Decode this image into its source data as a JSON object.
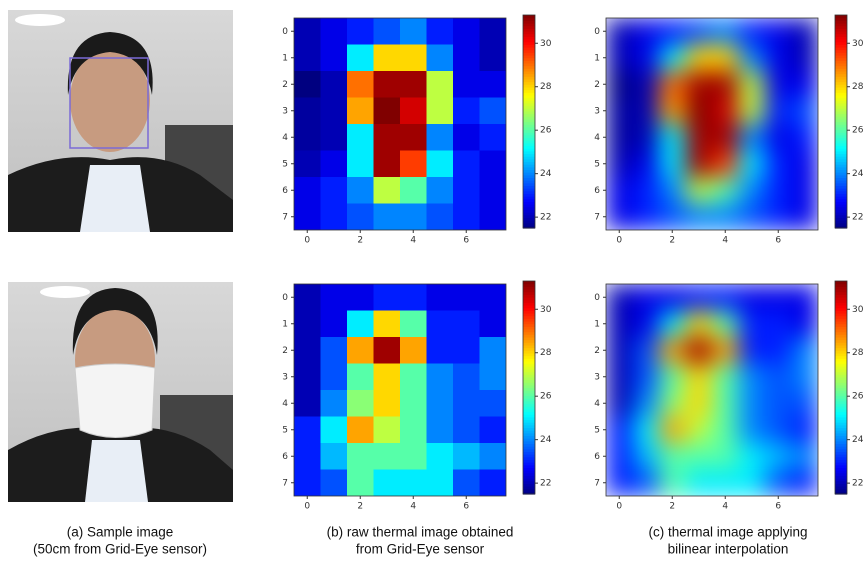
{
  "chart_data": [
    {
      "type": "heatmap",
      "colormap": "jet",
      "interpolation": "none",
      "xlim": [
        -0.5,
        7.5
      ],
      "ylim": [
        7.5,
        -0.5
      ],
      "xticks": [
        0,
        2,
        4,
        6
      ],
      "yticks": [
        0,
        1,
        2,
        3,
        4,
        5,
        6,
        7
      ],
      "clim": [
        21.5,
        31.3
      ],
      "colorbar_ticks": [
        22,
        24,
        26,
        28,
        30
      ],
      "values": [
        [
          22,
          22.5,
          23,
          23.5,
          24,
          23,
          22.5,
          22
        ],
        [
          22,
          22.5,
          25,
          28,
          28,
          24,
          22.5,
          22
        ],
        [
          21.5,
          22,
          29,
          31,
          31,
          27,
          22.5,
          22.5
        ],
        [
          21.8,
          22,
          28.5,
          31.5,
          30.5,
          27,
          23,
          23.5
        ],
        [
          21.8,
          22,
          25,
          31,
          31,
          24,
          22.5,
          23
        ],
        [
          22,
          22.5,
          25,
          31,
          29.5,
          25,
          23,
          22.5
        ],
        [
          22.5,
          23,
          24,
          27,
          26,
          24,
          23,
          22.5
        ],
        [
          22.5,
          23,
          23.5,
          24,
          24,
          23.5,
          23,
          22.5
        ]
      ]
    },
    {
      "type": "heatmap",
      "colormap": "jet",
      "interpolation": "bilinear",
      "xlim": [
        -0.5,
        7.5
      ],
      "ylim": [
        7.5,
        -0.5
      ],
      "xticks": [
        0,
        2,
        4,
        6
      ],
      "yticks": [
        0,
        1,
        2,
        3,
        4,
        5,
        6,
        7
      ],
      "clim": [
        21.5,
        31.3
      ],
      "colorbar_ticks": [
        22,
        24,
        26,
        28,
        30
      ],
      "values": [
        [
          22,
          22.5,
          23,
          23.5,
          24,
          23,
          22.5,
          22
        ],
        [
          22,
          22.5,
          25,
          28,
          28,
          24,
          22.5,
          22
        ],
        [
          21.5,
          22,
          29,
          31,
          31,
          27,
          22.5,
          22.5
        ],
        [
          21.8,
          22,
          28.5,
          31.5,
          30.5,
          27,
          23,
          23.5
        ],
        [
          21.8,
          22,
          25,
          31,
          31,
          24,
          22.5,
          23
        ],
        [
          22,
          22.5,
          25,
          31,
          29.5,
          25,
          23,
          22.5
        ],
        [
          22.5,
          23,
          24,
          27,
          26,
          24,
          23,
          22.5
        ],
        [
          22.5,
          23,
          23.5,
          24,
          24,
          23.5,
          23,
          22.5
        ]
      ]
    },
    {
      "type": "heatmap",
      "colormap": "jet",
      "interpolation": "none",
      "xlim": [
        -0.5,
        7.5
      ],
      "ylim": [
        7.5,
        -0.5
      ],
      "xticks": [
        0,
        2,
        4,
        6
      ],
      "yticks": [
        0,
        1,
        2,
        3,
        4,
        5,
        6,
        7
      ],
      "clim": [
        21.5,
        31.3
      ],
      "colorbar_ticks": [
        22,
        24,
        26,
        28,
        30
      ],
      "values": [
        [
          22,
          22.5,
          22.5,
          23,
          23,
          22.5,
          22.5,
          22.5
        ],
        [
          22,
          22.5,
          25,
          28,
          26,
          23,
          23,
          22.5
        ],
        [
          22,
          23.5,
          28.5,
          31,
          28.5,
          23,
          23,
          24
        ],
        [
          22,
          23.5,
          26,
          28,
          26,
          24,
          23.5,
          24
        ],
        [
          22,
          24,
          26.5,
          28,
          26,
          24,
          23.5,
          23.5
        ],
        [
          23,
          25,
          28.5,
          27,
          26,
          24,
          23.5,
          23
        ],
        [
          23,
          24.5,
          26,
          26,
          26,
          25,
          24.5,
          24
        ],
        [
          23,
          23.5,
          26,
          25,
          25,
          25,
          23.5,
          23
        ]
      ]
    },
    {
      "type": "heatmap",
      "colormap": "jet",
      "interpolation": "bilinear",
      "xlim": [
        -0.5,
        7.5
      ],
      "ylim": [
        7.5,
        -0.5
      ],
      "xticks": [
        0,
        2,
        4,
        6
      ],
      "yticks": [
        0,
        1,
        2,
        3,
        4,
        5,
        6,
        7
      ],
      "clim": [
        21.5,
        31.3
      ],
      "colorbar_ticks": [
        22,
        24,
        26,
        28,
        30
      ],
      "values": [
        [
          22,
          22.5,
          22.5,
          23,
          23,
          22.5,
          22.5,
          22.5
        ],
        [
          22,
          22.5,
          25,
          28,
          26,
          23,
          23,
          22.5
        ],
        [
          22,
          23.5,
          28.5,
          31,
          28.5,
          23,
          23,
          24
        ],
        [
          22,
          23.5,
          26,
          28,
          26,
          24,
          23.5,
          24
        ],
        [
          22,
          24,
          26.5,
          28,
          26,
          24,
          23.5,
          23.5
        ],
        [
          23,
          25,
          28.5,
          27,
          26,
          24,
          23.5,
          23
        ],
        [
          23,
          24.5,
          26,
          26,
          26,
          25,
          24.5,
          24
        ],
        [
          23,
          23.5,
          26,
          25,
          25,
          25,
          23.5,
          23
        ]
      ]
    }
  ],
  "captions": [
    [
      "(a) Sample image",
      "(50cm from Grid-Eye sensor)"
    ],
    [
      "(b) raw thermal image obtained",
      "from Grid-Eye sensor"
    ],
    [
      "(c) thermal image applying",
      "bilinear interpolation"
    ]
  ]
}
